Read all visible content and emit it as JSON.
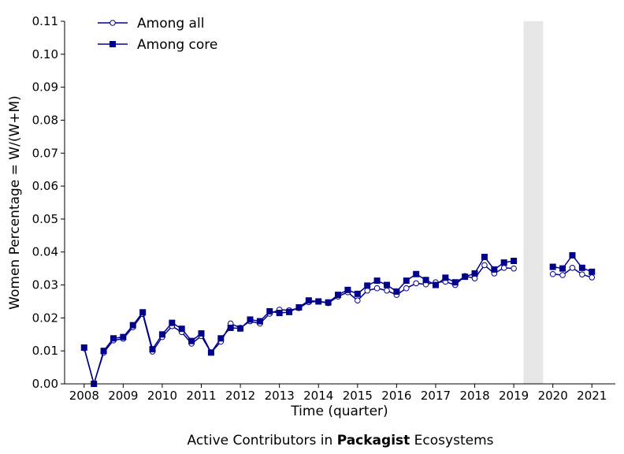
{
  "chart_data": {
    "type": "line",
    "xlabel": "Time (quarter)",
    "ylabel": "Women Percentage = W/(W+M)",
    "caption": {
      "prefix": "Active Contributors in ",
      "bold": "Packagist",
      "suffix": " Ecosystems"
    },
    "xlim": [
      2007.5,
      2021.6
    ],
    "ylim": [
      0,
      0.11
    ],
    "x_ticks": [
      2008,
      2009,
      2010,
      2011,
      2012,
      2013,
      2014,
      2015,
      2016,
      2017,
      2018,
      2019,
      2020,
      2021
    ],
    "x_tick_labels": [
      "2008",
      "2009",
      "2010",
      "2011",
      "2012",
      "2013",
      "2014",
      "2015",
      "2016",
      "2017",
      "2018",
      "2019",
      "2020",
      "2021"
    ],
    "y_ticks": [
      0.0,
      0.01,
      0.02,
      0.03,
      0.04,
      0.05,
      0.06,
      0.07,
      0.08,
      0.09,
      0.1,
      0.11
    ],
    "y_tick_labels": [
      "0.00",
      "0.01",
      "0.02",
      "0.03",
      "0.04",
      "0.05",
      "0.06",
      "0.07",
      "0.08",
      "0.09",
      "0.10",
      "0.11"
    ],
    "shaded_region": [
      2019.25,
      2019.75
    ],
    "legend_position": "top-left",
    "colors": {
      "series": "#00008b",
      "shade": "#e6e6e6"
    },
    "series": [
      {
        "name": "Among all",
        "marker": "circle-open",
        "segments": [
          {
            "x": [
              2008.0,
              2008.25,
              2008.5,
              2008.75,
              2009.0,
              2009.25,
              2009.5,
              2009.75,
              2010.0,
              2010.25,
              2010.5,
              2010.75,
              2011.0,
              2011.25,
              2011.5,
              2011.75,
              2012.0,
              2012.25,
              2012.5,
              2012.75,
              2013.0,
              2013.25,
              2013.5,
              2013.75,
              2014.0,
              2014.25,
              2014.5,
              2014.75,
              2015.0,
              2015.25,
              2015.5,
              2015.75,
              2016.0,
              2016.25,
              2016.5,
              2016.75,
              2017.0,
              2017.25,
              2017.5,
              2017.75,
              2018.0,
              2018.25,
              2018.5,
              2018.75,
              2019.0
            ],
            "y": [
              0.0108,
              0.0,
              0.0095,
              0.0132,
              0.0137,
              0.0172,
              0.0212,
              0.0098,
              0.0142,
              0.0175,
              0.0157,
              0.0122,
              0.0145,
              0.0095,
              0.0128,
              0.0183,
              0.017,
              0.019,
              0.0183,
              0.0213,
              0.0225,
              0.0223,
              0.023,
              0.0248,
              0.025,
              0.0245,
              0.0265,
              0.0278,
              0.0253,
              0.0283,
              0.029,
              0.0283,
              0.027,
              0.029,
              0.0305,
              0.0302,
              0.0308,
              0.031,
              0.03,
              0.0327,
              0.032,
              0.036,
              0.0335,
              0.0352,
              0.035
            ]
          },
          {
            "x": [
              2020.0,
              2020.25,
              2020.5,
              2020.75,
              2021.0
            ],
            "y": [
              0.0333,
              0.033,
              0.0352,
              0.0332,
              0.0323
            ]
          }
        ]
      },
      {
        "name": "Among core",
        "marker": "square-filled",
        "segments": [
          {
            "x": [
              2008.0,
              2008.25,
              2008.5,
              2008.75,
              2009.0,
              2009.25,
              2009.5,
              2009.75,
              2010.0,
              2010.25,
              2010.5,
              2010.75,
              2011.0,
              2011.25,
              2011.5,
              2011.75,
              2012.0,
              2012.25,
              2012.5,
              2012.75,
              2013.0,
              2013.25,
              2013.5,
              2013.75,
              2014.0,
              2014.25,
              2014.5,
              2014.75,
              2015.0,
              2015.25,
              2015.5,
              2015.75,
              2016.0,
              2016.25,
              2016.5,
              2016.75,
              2017.0,
              2017.25,
              2017.5,
              2017.75,
              2018.0,
              2018.25,
              2018.5,
              2018.75,
              2019.0
            ],
            "y": [
              0.011,
              0.0,
              0.01,
              0.0138,
              0.0142,
              0.0178,
              0.0217,
              0.0105,
              0.015,
              0.0185,
              0.0167,
              0.013,
              0.0153,
              0.0095,
              0.0138,
              0.017,
              0.0168,
              0.0195,
              0.019,
              0.022,
              0.0215,
              0.0218,
              0.0232,
              0.0253,
              0.025,
              0.0247,
              0.027,
              0.0285,
              0.0273,
              0.0298,
              0.0313,
              0.03,
              0.028,
              0.0313,
              0.0333,
              0.0315,
              0.03,
              0.0322,
              0.0308,
              0.0325,
              0.0335,
              0.0385,
              0.0347,
              0.0368,
              0.0373
            ]
          },
          {
            "x": [
              2020.0,
              2020.25,
              2020.5,
              2020.75,
              2021.0
            ],
            "y": [
              0.0355,
              0.035,
              0.039,
              0.0352,
              0.034
            ]
          }
        ]
      }
    ]
  }
}
